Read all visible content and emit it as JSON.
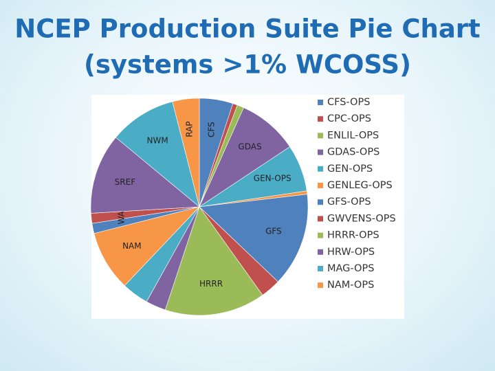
{
  "chart_data": {
    "type": "pie",
    "title_lines": [
      "NCEP Production Suite Pie Chart",
      "(systems >1% WCOSS)"
    ],
    "categories": [
      "CFS-OPS",
      "CPC-OPS",
      "ENLIL-OPS",
      "GDAS-OPS",
      "GEN-OPS",
      "GENLEG-OPS",
      "GFS-OPS",
      "GWVENS-OPS",
      "HRRR-OPS",
      "HRW-OPS",
      "MAG-OPS",
      "NAM-OPS",
      null,
      null,
      null,
      null,
      null
    ],
    "labels": [
      "CFS",
      null,
      null,
      "GDAS",
      "GEN-OPS",
      null,
      "GFS",
      null,
      "HRRR",
      null,
      null,
      "NAM",
      null,
      "WAV",
      "SREF",
      "NWM",
      "RAP"
    ],
    "values": [
      5,
      0.7,
      1,
      9,
      7,
      0.5,
      14,
      3,
      15,
      3,
      4,
      9,
      1.5,
      1.5,
      12,
      10,
      4
    ],
    "colors": [
      "#4f81bd",
      "#c0504d",
      "#9bbb59",
      "#8064a2",
      "#4bacc6",
      "#f79646",
      "#4f81bd",
      "#c0504d",
      "#9bbb59",
      "#8064a2",
      "#4bacc6",
      "#f79646",
      "#4f81bd",
      "#c0504d",
      "#8064a2",
      "#4bacc6",
      "#f79646"
    ],
    "legend": "right"
  }
}
